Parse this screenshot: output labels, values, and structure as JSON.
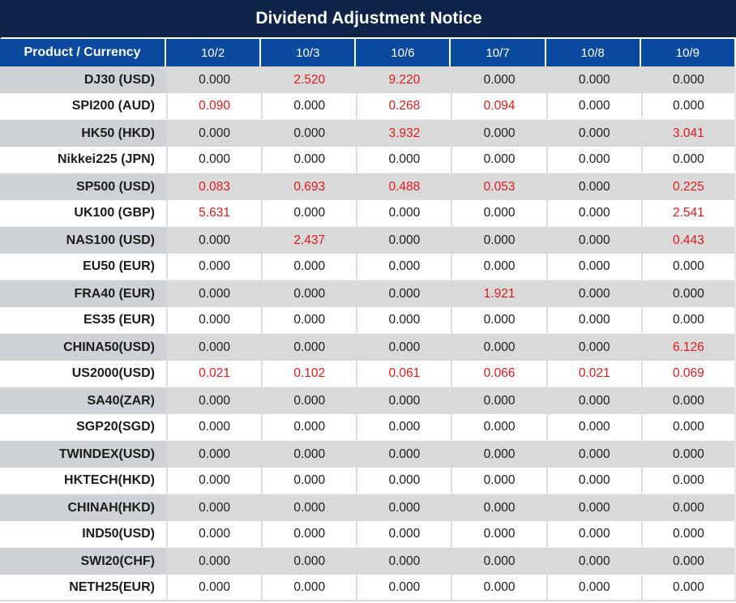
{
  "title": "Dividend Adjustment Notice",
  "colors": {
    "title_bg": "#0D2347",
    "header_bg": "#0B4A9E",
    "gray_row_name": "#CED1D5",
    "gray_row_value": "#D9D9D9",
    "highlight_red": "#E01A1A",
    "text": "#1C1C1C"
  },
  "table": {
    "columns": [
      "Product / Currency",
      "10/2",
      "10/3",
      "10/6",
      "10/7",
      "10/8",
      "10/9"
    ],
    "rows": [
      {
        "product": "DJ30 (USD)",
        "values": [
          {
            "text": "0.000",
            "red": false
          },
          {
            "text": "2.520",
            "red": true
          },
          {
            "text": "9.220",
            "red": true
          },
          {
            "text": "0.000",
            "red": false
          },
          {
            "text": "0.000",
            "red": false
          },
          {
            "text": "0.000",
            "red": false
          }
        ]
      },
      {
        "product": "SPI200 (AUD)",
        "values": [
          {
            "text": "0.090",
            "red": true
          },
          {
            "text": "0.000",
            "red": false
          },
          {
            "text": "0.268",
            "red": true
          },
          {
            "text": "0.094",
            "red": true
          },
          {
            "text": "0.000",
            "red": false
          },
          {
            "text": "0.000",
            "red": false
          }
        ]
      },
      {
        "product": "HK50 (HKD)",
        "values": [
          {
            "text": "0.000",
            "red": false
          },
          {
            "text": "0.000",
            "red": false
          },
          {
            "text": "3.932",
            "red": true
          },
          {
            "text": "0.000",
            "red": false
          },
          {
            "text": "0.000",
            "red": false
          },
          {
            "text": "3.041",
            "red": true
          }
        ]
      },
      {
        "product": "Nikkei225 (JPN)",
        "values": [
          {
            "text": "0.000",
            "red": false
          },
          {
            "text": "0.000",
            "red": false
          },
          {
            "text": "0.000",
            "red": false
          },
          {
            "text": "0.000",
            "red": false
          },
          {
            "text": "0.000",
            "red": false
          },
          {
            "text": "0.000",
            "red": false
          }
        ]
      },
      {
        "product": "SP500 (USD)",
        "values": [
          {
            "text": "0.083",
            "red": true
          },
          {
            "text": "0.693",
            "red": true
          },
          {
            "text": "0.488",
            "red": true
          },
          {
            "text": "0.053",
            "red": true
          },
          {
            "text": "0.000",
            "red": false
          },
          {
            "text": "0.225",
            "red": true
          }
        ]
      },
      {
        "product": "UK100 (GBP)",
        "values": [
          {
            "text": "5.631",
            "red": true
          },
          {
            "text": "0.000",
            "red": false
          },
          {
            "text": "0.000",
            "red": false
          },
          {
            "text": "0.000",
            "red": false
          },
          {
            "text": "0.000",
            "red": false
          },
          {
            "text": "2.541",
            "red": true
          }
        ]
      },
      {
        "product": "NAS100 (USD)",
        "values": [
          {
            "text": "0.000",
            "red": false
          },
          {
            "text": "2.437",
            "red": true
          },
          {
            "text": "0.000",
            "red": false
          },
          {
            "text": "0.000",
            "red": false
          },
          {
            "text": "0.000",
            "red": false
          },
          {
            "text": "0.443",
            "red": true
          }
        ]
      },
      {
        "product": "EU50 (EUR)",
        "values": [
          {
            "text": "0.000",
            "red": false
          },
          {
            "text": "0.000",
            "red": false
          },
          {
            "text": "0.000",
            "red": false
          },
          {
            "text": "0.000",
            "red": false
          },
          {
            "text": "0.000",
            "red": false
          },
          {
            "text": "0.000",
            "red": false
          }
        ]
      },
      {
        "product": "FRA40 (EUR)",
        "values": [
          {
            "text": "0.000",
            "red": false
          },
          {
            "text": "0.000",
            "red": false
          },
          {
            "text": "0.000",
            "red": false
          },
          {
            "text": "1.921",
            "red": true
          },
          {
            "text": "0.000",
            "red": false
          },
          {
            "text": "0.000",
            "red": false
          }
        ]
      },
      {
        "product": "ES35 (EUR)",
        "values": [
          {
            "text": "0.000",
            "red": false
          },
          {
            "text": "0.000",
            "red": false
          },
          {
            "text": "0.000",
            "red": false
          },
          {
            "text": "0.000",
            "red": false
          },
          {
            "text": "0.000",
            "red": false
          },
          {
            "text": "0.000",
            "red": false
          }
        ]
      },
      {
        "product": "CHINA50(USD)",
        "values": [
          {
            "text": "0.000",
            "red": false
          },
          {
            "text": "0.000",
            "red": false
          },
          {
            "text": "0.000",
            "red": false
          },
          {
            "text": "0.000",
            "red": false
          },
          {
            "text": "0.000",
            "red": false
          },
          {
            "text": "6.126",
            "red": true
          }
        ]
      },
      {
        "product": "US2000(USD)",
        "values": [
          {
            "text": "0.021",
            "red": true
          },
          {
            "text": "0.102",
            "red": true
          },
          {
            "text": "0.061",
            "red": true
          },
          {
            "text": "0.066",
            "red": true
          },
          {
            "text": "0.021",
            "red": true
          },
          {
            "text": "0.069",
            "red": true
          }
        ]
      },
      {
        "product": "SA40(ZAR)",
        "values": [
          {
            "text": "0.000",
            "red": false
          },
          {
            "text": "0.000",
            "red": false
          },
          {
            "text": "0.000",
            "red": false
          },
          {
            "text": "0.000",
            "red": false
          },
          {
            "text": "0.000",
            "red": false
          },
          {
            "text": "0.000",
            "red": false
          }
        ]
      },
      {
        "product": "SGP20(SGD)",
        "values": [
          {
            "text": "0.000",
            "red": false
          },
          {
            "text": "0.000",
            "red": false
          },
          {
            "text": "0.000",
            "red": false
          },
          {
            "text": "0.000",
            "red": false
          },
          {
            "text": "0.000",
            "red": false
          },
          {
            "text": "0.000",
            "red": false
          }
        ]
      },
      {
        "product": "TWINDEX(USD)",
        "values": [
          {
            "text": "0.000",
            "red": false
          },
          {
            "text": "0.000",
            "red": false
          },
          {
            "text": "0.000",
            "red": false
          },
          {
            "text": "0.000",
            "red": false
          },
          {
            "text": "0.000",
            "red": false
          },
          {
            "text": "0.000",
            "red": false
          }
        ]
      },
      {
        "product": "HKTECH(HKD)",
        "values": [
          {
            "text": "0.000",
            "red": false
          },
          {
            "text": "0.000",
            "red": false
          },
          {
            "text": "0.000",
            "red": false
          },
          {
            "text": "0.000",
            "red": false
          },
          {
            "text": "0.000",
            "red": false
          },
          {
            "text": "0.000",
            "red": false
          }
        ]
      },
      {
        "product": "CHINAH(HKD)",
        "values": [
          {
            "text": "0.000",
            "red": false
          },
          {
            "text": "0.000",
            "red": false
          },
          {
            "text": "0.000",
            "red": false
          },
          {
            "text": "0.000",
            "red": false
          },
          {
            "text": "0.000",
            "red": false
          },
          {
            "text": "0.000",
            "red": false
          }
        ]
      },
      {
        "product": "IND50(USD)",
        "values": [
          {
            "text": "0.000",
            "red": false
          },
          {
            "text": "0.000",
            "red": false
          },
          {
            "text": "0.000",
            "red": false
          },
          {
            "text": "0.000",
            "red": false
          },
          {
            "text": "0.000",
            "red": false
          },
          {
            "text": "0.000",
            "red": false
          }
        ]
      },
      {
        "product": "SWI20(CHF)",
        "values": [
          {
            "text": "0.000",
            "red": false
          },
          {
            "text": "0.000",
            "red": false
          },
          {
            "text": "0.000",
            "red": false
          },
          {
            "text": "0.000",
            "red": false
          },
          {
            "text": "0.000",
            "red": false
          },
          {
            "text": "0.000",
            "red": false
          }
        ]
      },
      {
        "product": "NETH25(EUR)",
        "values": [
          {
            "text": "0.000",
            "red": false
          },
          {
            "text": "0.000",
            "red": false
          },
          {
            "text": "0.000",
            "red": false
          },
          {
            "text": "0.000",
            "red": false
          },
          {
            "text": "0.000",
            "red": false
          },
          {
            "text": "0.000",
            "red": false
          }
        ]
      }
    ]
  }
}
